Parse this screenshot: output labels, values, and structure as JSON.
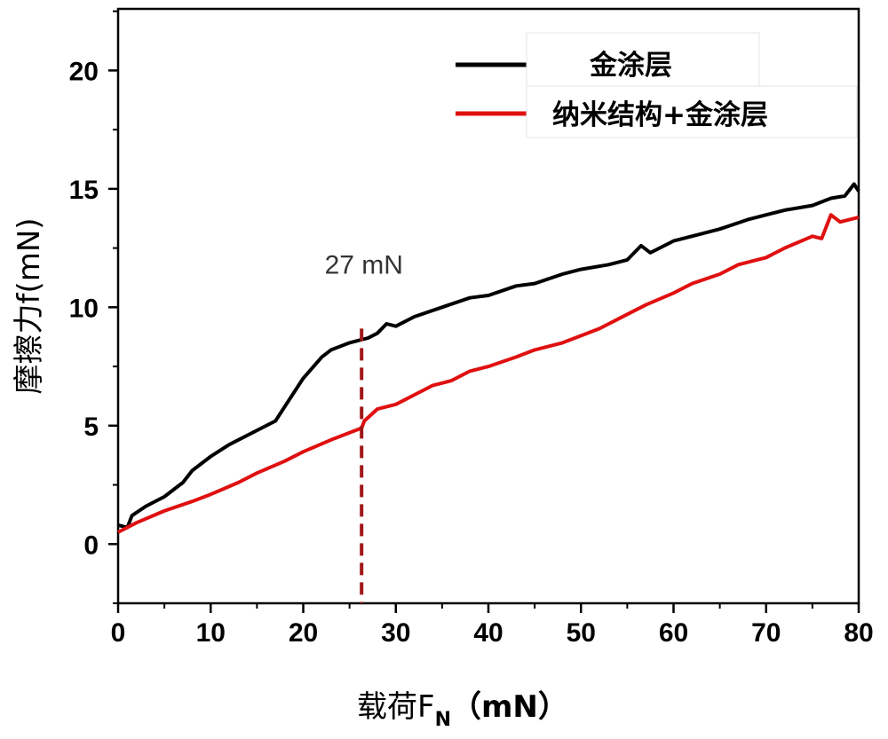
{
  "chart_data": {
    "type": "line",
    "title": "",
    "xlabel": "载荷F",
    "xlabel_sub": "N",
    "xlabel_unit": "（mN）",
    "ylabel": "摩擦力f(mN)",
    "xlim": [
      0,
      80
    ],
    "ylim": [
      -2.5,
      22.6
    ],
    "xticks": [
      "0",
      "10",
      "20",
      "30",
      "40",
      "50",
      "60",
      "70",
      "80"
    ],
    "yticks": [
      "0",
      "5",
      "10",
      "15",
      "20"
    ],
    "grid": false,
    "legend_position": "top-right",
    "series": [
      {
        "name": "金涂层",
        "color": "#000000",
        "x": [
          0,
          1,
          1.5,
          3,
          5,
          7,
          8,
          10,
          12,
          15,
          17,
          18,
          20,
          22,
          23,
          25,
          27,
          28,
          29,
          30,
          32,
          35,
          38,
          40,
          43,
          45,
          48,
          50,
          53,
          55,
          56.5,
          57.5,
          60,
          63,
          65,
          68,
          70,
          72,
          75,
          77,
          78.5,
          79.5,
          80
        ],
        "y": [
          0.8,
          0.7,
          1.2,
          1.6,
          2.0,
          2.6,
          3.1,
          3.7,
          4.2,
          4.8,
          5.2,
          5.8,
          7.0,
          7.9,
          8.2,
          8.5,
          8.7,
          8.9,
          9.3,
          9.2,
          9.6,
          10.0,
          10.4,
          10.5,
          10.9,
          11.0,
          11.4,
          11.6,
          11.8,
          12.0,
          12.6,
          12.3,
          12.8,
          13.1,
          13.3,
          13.7,
          13.9,
          14.1,
          14.3,
          14.6,
          14.7,
          15.2,
          14.9
        ]
      },
      {
        "name": "纳米结构+金涂层",
        "color": "#e01010",
        "x": [
          0,
          2,
          5,
          8,
          10,
          13,
          15,
          18,
          20,
          23,
          26.3,
          26.6,
          28,
          30,
          32,
          34,
          35,
          36,
          38,
          40,
          43,
          45,
          48,
          50,
          52,
          55,
          57,
          60,
          62,
          65,
          67,
          70,
          72,
          75,
          76,
          77,
          78,
          80
        ],
        "y": [
          0.5,
          0.9,
          1.4,
          1.8,
          2.1,
          2.6,
          3.0,
          3.5,
          3.9,
          4.4,
          4.9,
          5.2,
          5.7,
          5.9,
          6.3,
          6.7,
          6.8,
          6.9,
          7.3,
          7.5,
          7.9,
          8.2,
          8.5,
          8.8,
          9.1,
          9.7,
          10.1,
          10.6,
          11.0,
          11.4,
          11.8,
          12.1,
          12.5,
          13.0,
          12.9,
          13.9,
          13.6,
          13.8
        ]
      }
    ],
    "annotations": [
      {
        "text": "27 mN",
        "x": 22.5,
        "y": 11.8
      },
      {
        "type": "vline",
        "x": 26.3,
        "y_top": 9.1,
        "color": "#a01818",
        "style": "dashed"
      }
    ]
  }
}
